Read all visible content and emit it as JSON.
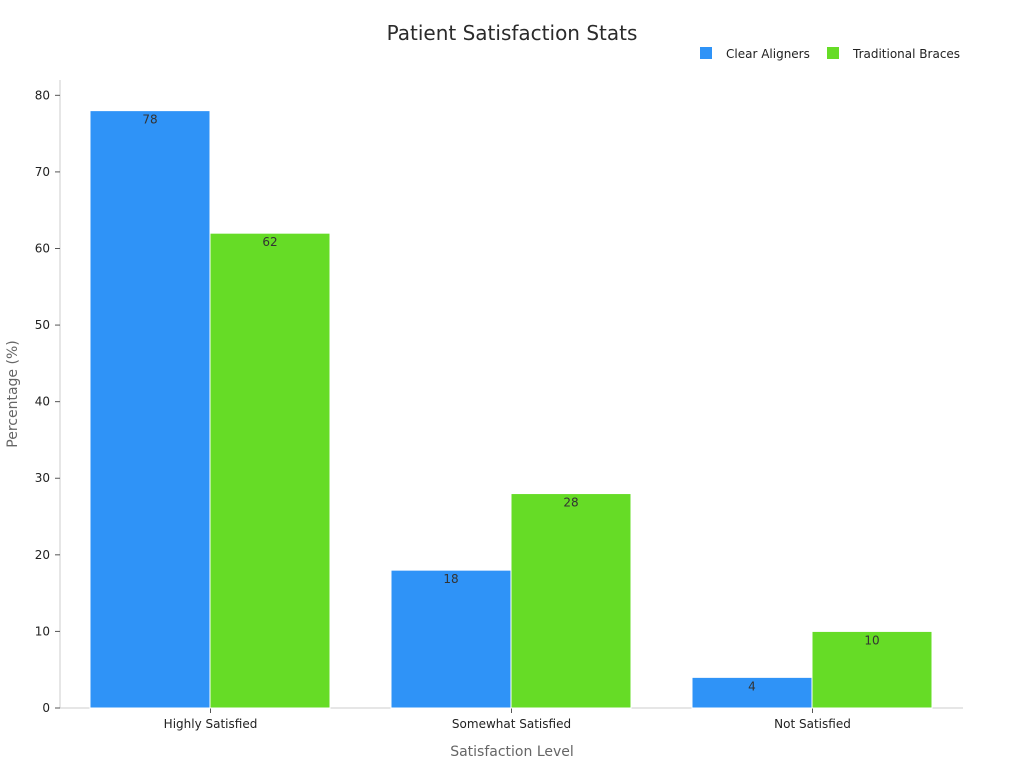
{
  "chart_data": {
    "type": "bar",
    "title": "Patient Satisfaction Stats",
    "xlabel": "Satisfaction Level",
    "ylabel": "Percentage (%)",
    "categories": [
      "Highly Satisfied",
      "Somewhat Satisfied",
      "Not Satisfied"
    ],
    "series": [
      {
        "name": "Clear Aligners",
        "color": "#2f93f7",
        "values": [
          78,
          18,
          4
        ]
      },
      {
        "name": "Traditional Braces",
        "color": "#66dc26",
        "values": [
          62,
          28,
          10
        ]
      }
    ],
    "ylim": [
      0,
      82
    ],
    "yticks": [
      0,
      10,
      20,
      30,
      40,
      50,
      60,
      70,
      80
    ],
    "grid": false,
    "legend_position": "top-right",
    "data_labels": true
  }
}
